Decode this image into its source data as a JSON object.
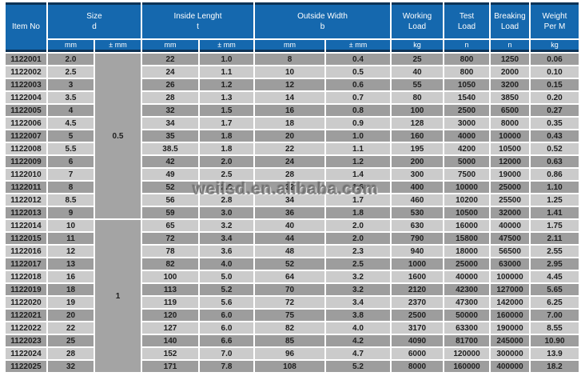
{
  "header": {
    "item_no": "Item No",
    "size": {
      "l1": "Size",
      "l2": "d"
    },
    "inside": {
      "l1": "Inside Lenght",
      "l2": "t"
    },
    "outside": {
      "l1": "Outside Width",
      "l2": "b"
    },
    "working": {
      "l1": "Working",
      "l2": "Load"
    },
    "test": {
      "l1": "Test",
      "l2": "Load"
    },
    "breaking": {
      "l1": "Breaking",
      "l2": "Load"
    },
    "weight": {
      "l1": "Weight",
      "l2": "Per M"
    }
  },
  "units": {
    "size_mm": "mm",
    "size_tol": "± mm",
    "inside_mm": "mm",
    "inside_tol": "± mm",
    "outside_mm": "mm",
    "outside_tol": "± mm",
    "working": "kg",
    "test": "n",
    "breaking": "n",
    "weight": "kg"
  },
  "size_tolerance_merges": [
    {
      "start_index": 0,
      "span": 13,
      "value": "0.5"
    },
    {
      "start_index": 13,
      "span": 12,
      "value": "1"
    }
  ],
  "rows": [
    [
      "1122001",
      "2.0",
      "22",
      "1.0",
      "8",
      "0.4",
      "25",
      "800",
      "1250",
      "0.06"
    ],
    [
      "1122002",
      "2.5",
      "24",
      "1.1",
      "10",
      "0.5",
      "40",
      "800",
      "2000",
      "0.10"
    ],
    [
      "1122003",
      "3",
      "26",
      "1.2",
      "12",
      "0.6",
      "55",
      "1050",
      "3200",
      "0.15"
    ],
    [
      "1122004",
      "3.5",
      "28",
      "1.3",
      "14",
      "0.7",
      "80",
      "1540",
      "3850",
      "0.20"
    ],
    [
      "1122005",
      "4",
      "32",
      "1.5",
      "16",
      "0.8",
      "100",
      "2500",
      "6500",
      "0.27"
    ],
    [
      "1122006",
      "4.5",
      "34",
      "1.7",
      "18",
      "0.9",
      "128",
      "3000",
      "8000",
      "0.35"
    ],
    [
      "1122007",
      "5",
      "35",
      "1.8",
      "20",
      "1.0",
      "160",
      "4000",
      "10000",
      "0.43"
    ],
    [
      "1122008",
      "5.5",
      "38.5",
      "1.8",
      "22",
      "1.1",
      "195",
      "4200",
      "10500",
      "0.52"
    ],
    [
      "1122009",
      "6",
      "42",
      "2.0",
      "24",
      "1.2",
      "200",
      "5000",
      "12000",
      "0.63"
    ],
    [
      "1122010",
      "7",
      "49",
      "2.5",
      "28",
      "1.4",
      "300",
      "7500",
      "19000",
      "0.86"
    ],
    [
      "1122011",
      "8",
      "52",
      "2.6",
      "32",
      "1.6",
      "400",
      "10000",
      "25000",
      "1.10"
    ],
    [
      "1122012",
      "8.5",
      "56",
      "2.8",
      "34",
      "1.7",
      "460",
      "10200",
      "25500",
      "1.25"
    ],
    [
      "1122013",
      "9",
      "59",
      "3.0",
      "36",
      "1.8",
      "530",
      "10500",
      "32000",
      "1.41"
    ],
    [
      "1122014",
      "10",
      "65",
      "3.2",
      "40",
      "2.0",
      "630",
      "16000",
      "40000",
      "1.75"
    ],
    [
      "1122015",
      "11",
      "72",
      "3.4",
      "44",
      "2.0",
      "790",
      "15800",
      "47500",
      "2.11"
    ],
    [
      "1122016",
      "12",
      "78",
      "3.6",
      "48",
      "2.3",
      "940",
      "18000",
      "56500",
      "2.55"
    ],
    [
      "1122017",
      "13",
      "82",
      "4.0",
      "52",
      "2.5",
      "1000",
      "25000",
      "63000",
      "2.95"
    ],
    [
      "1122018",
      "16",
      "100",
      "5.0",
      "64",
      "3.2",
      "1600",
      "40000",
      "100000",
      "4.45"
    ],
    [
      "1122019",
      "18",
      "113",
      "5.2",
      "70",
      "3.2",
      "2120",
      "42300",
      "127000",
      "5.65"
    ],
    [
      "1122020",
      "19",
      "119",
      "5.6",
      "72",
      "3.4",
      "2370",
      "47300",
      "142000",
      "6.25"
    ],
    [
      "1122021",
      "20",
      "120",
      "6.0",
      "75",
      "3.8",
      "2500",
      "50000",
      "160000",
      "7.00"
    ],
    [
      "1122022",
      "22",
      "127",
      "6.0",
      "82",
      "4.0",
      "3170",
      "63300",
      "190000",
      "8.55"
    ],
    [
      "1122023",
      "25",
      "140",
      "6.6",
      "85",
      "4.2",
      "4090",
      "81700",
      "245000",
      "10.90"
    ],
    [
      "1122024",
      "28",
      "152",
      "7.0",
      "96",
      "4.7",
      "6000",
      "120000",
      "300000",
      "13.9"
    ],
    [
      "1122025",
      "32",
      "171",
      "7.8",
      "108",
      "5.2",
      "8000",
      "160000",
      "400000",
      "18.2"
    ]
  ],
  "watermark": "weilsd.en.alibaba.com",
  "colors": {
    "header_blue": "#1568ae",
    "dark_navy_border": "#0d3356",
    "row_dark": "#9d9d9d",
    "row_light": "#cbcbcb",
    "merged_cell": "#a4a4a4",
    "grid_white": "#ffffff"
  }
}
